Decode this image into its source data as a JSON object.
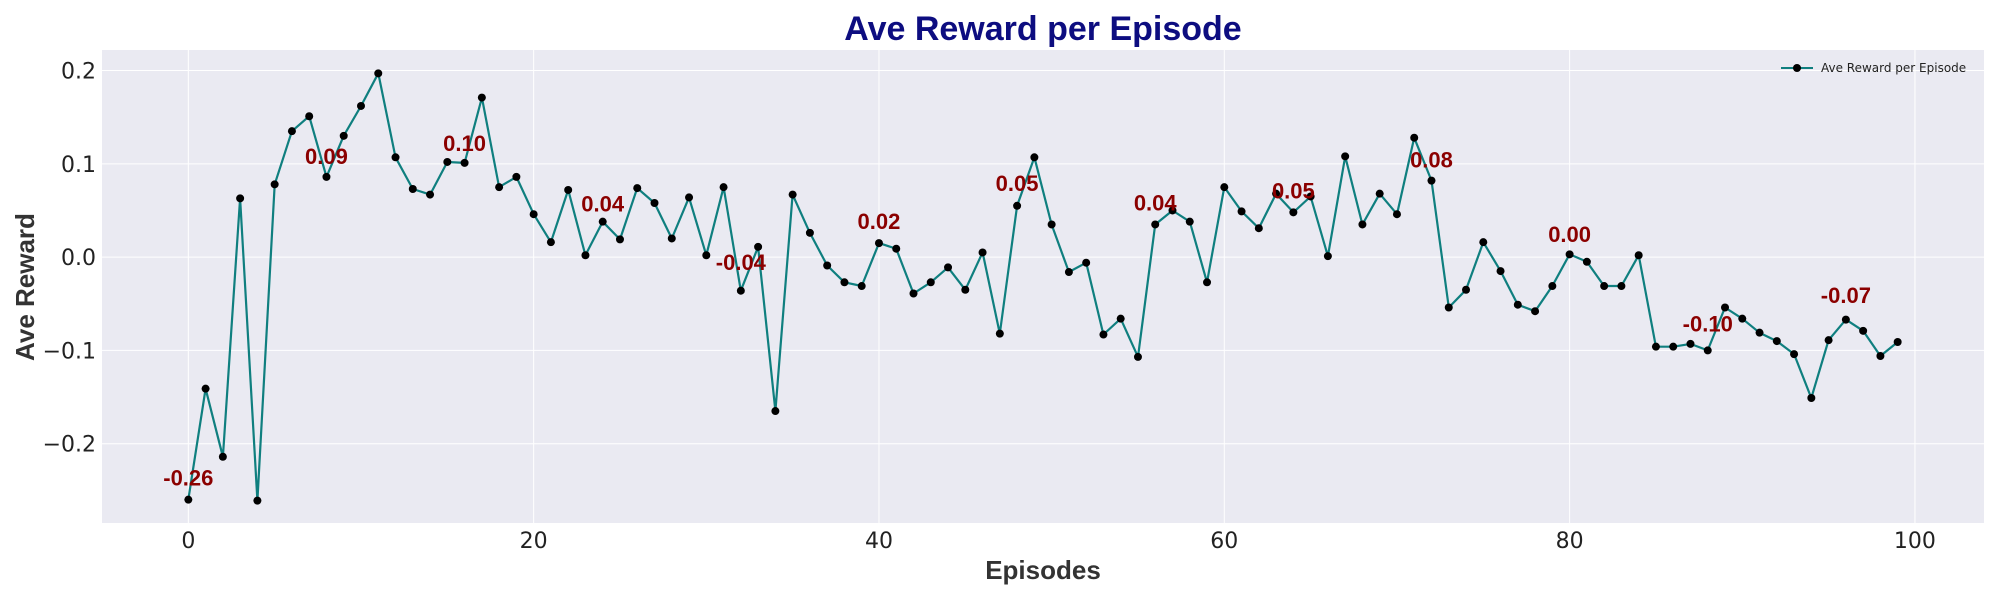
{
  "chart_data": {
    "type": "line",
    "title": "Ave Reward per Episode",
    "xlabel": "Episodes",
    "ylabel": "Ave Reward",
    "xlim": [
      -5,
      104
    ],
    "ylim": [
      -0.285,
      0.222
    ],
    "xticks": [
      0,
      20,
      40,
      60,
      80,
      100
    ],
    "xtick_labels": [
      "0",
      "20",
      "40",
      "60",
      "80",
      "100"
    ],
    "yticks": [
      -0.2,
      -0.1,
      0.0,
      0.1,
      0.2
    ],
    "ytick_labels": [
      "−0.2",
      "−0.1",
      "0.0",
      "0.1",
      "0.2"
    ],
    "grid": true,
    "legend_position": "top-right",
    "series": [
      {
        "name": "Ave Reward per Episode",
        "x": [
          0,
          1,
          2,
          3,
          4,
          5,
          6,
          7,
          8,
          9,
          10,
          11,
          12,
          13,
          14,
          15,
          16,
          17,
          18,
          19,
          20,
          21,
          22,
          23,
          24,
          25,
          26,
          27,
          28,
          29,
          30,
          31,
          32,
          33,
          34,
          35,
          36,
          37,
          38,
          39,
          40,
          41,
          42,
          43,
          44,
          45,
          46,
          47,
          48,
          49,
          50,
          51,
          52,
          53,
          54,
          55,
          56,
          57,
          58,
          59,
          60,
          61,
          62,
          63,
          64,
          65,
          66,
          67,
          68,
          69,
          70,
          71,
          72,
          73,
          74,
          75,
          76,
          77,
          78,
          79,
          80,
          81,
          82,
          83,
          84,
          85,
          86,
          87,
          88,
          89,
          90,
          91,
          92,
          93,
          94,
          95,
          96,
          97,
          98,
          99
        ],
        "y": [
          -0.26,
          -0.141,
          -0.214,
          0.063,
          -0.261,
          0.078,
          0.135,
          0.151,
          0.086,
          0.13,
          0.162,
          0.197,
          0.107,
          0.073,
          0.067,
          0.102,
          0.101,
          0.171,
          0.075,
          0.086,
          0.046,
          0.016,
          0.072,
          0.002,
          0.038,
          0.019,
          0.074,
          0.058,
          0.02,
          0.064,
          0.002,
          0.075,
          -0.036,
          0.011,
          -0.165,
          0.067,
          0.026,
          -0.009,
          -0.027,
          -0.031,
          0.015,
          0.009,
          -0.039,
          -0.027,
          -0.011,
          -0.035,
          0.005,
          -0.082,
          0.055,
          0.107,
          0.035,
          -0.016,
          -0.006,
          -0.083,
          -0.066,
          -0.107,
          0.035,
          0.05,
          0.038,
          -0.027,
          0.075,
          0.049,
          0.031,
          0.068,
          0.048,
          0.065,
          0.001,
          0.108,
          0.035,
          0.068,
          0.046,
          0.128,
          0.082,
          -0.054,
          -0.035,
          0.016,
          -0.015,
          -0.051,
          -0.058,
          -0.031,
          0.003,
          -0.005,
          -0.031,
          -0.031,
          0.002,
          -0.096,
          -0.096,
          -0.093,
          -0.1,
          -0.054,
          -0.066,
          -0.081,
          -0.09,
          -0.104,
          -0.151,
          -0.089,
          -0.067,
          -0.079,
          -0.106,
          -0.091
        ],
        "color": "#0f7f7f",
        "marker_color": "#000000"
      }
    ],
    "annotations": [
      {
        "x": 0,
        "y": -0.245,
        "text": "-0.26"
      },
      {
        "x": 8,
        "y": 0.1,
        "text": "0.09"
      },
      {
        "x": 16,
        "y": 0.114,
        "text": "0.10"
      },
      {
        "x": 24,
        "y": 0.049,
        "text": "0.04"
      },
      {
        "x": 32,
        "y": -0.014,
        "text": "-0.04"
      },
      {
        "x": 40,
        "y": 0.03,
        "text": "0.02"
      },
      {
        "x": 48,
        "y": 0.071,
        "text": "0.05"
      },
      {
        "x": 56,
        "y": 0.05,
        "text": "0.04"
      },
      {
        "x": 64,
        "y": 0.063,
        "text": "0.05"
      },
      {
        "x": 72,
        "y": 0.096,
        "text": "0.08"
      },
      {
        "x": 80,
        "y": 0.016,
        "text": "0.00"
      },
      {
        "x": 88,
        "y": -0.08,
        "text": "-0.10"
      },
      {
        "x": 96,
        "y": -0.049,
        "text": "-0.07"
      }
    ],
    "colors": {
      "title": "#0d0d80",
      "annotation": "#8b0000",
      "plot_background": "#eaeaf2",
      "grid": "#ffffff"
    }
  }
}
